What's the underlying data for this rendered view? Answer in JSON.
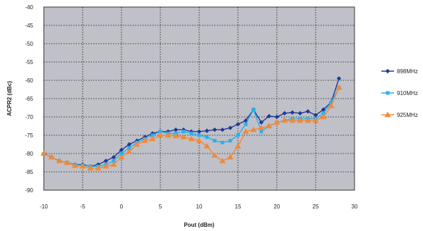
{
  "chart_data": {
    "type": "line",
    "title": "",
    "xlabel": "Pout (dBm)",
    "ylabel": "ACPR2 (dBc)",
    "xlim": [
      -10,
      30
    ],
    "ylim": [
      -90,
      -40
    ],
    "xticks": [
      -10,
      -5,
      0,
      5,
      10,
      15,
      20,
      25,
      30
    ],
    "yticks": [
      -90,
      -85,
      -80,
      -75,
      -70,
      -65,
      -60,
      -55,
      -50,
      -45,
      -40
    ],
    "grid": true,
    "plot_background": "#c0c0c8",
    "legend_position": "right",
    "x": [
      -10,
      -9,
      -8,
      -7,
      -6,
      -5,
      -4,
      -3,
      -2,
      -1,
      0,
      1,
      2,
      3,
      4,
      5,
      6,
      7,
      8,
      9,
      10,
      11,
      12,
      13,
      14,
      15,
      16,
      17,
      18,
      19,
      20,
      21,
      22,
      23,
      24,
      25,
      26,
      27,
      28
    ],
    "series": [
      {
        "name": "898MHz",
        "color": "#1f3a93",
        "marker": "diamond",
        "values": [
          -80,
          -81,
          -82,
          -82.5,
          -83,
          -83,
          -83.5,
          -83,
          -82,
          -81,
          -79,
          -77.5,
          -76.5,
          -75.5,
          -74.5,
          -74,
          -74,
          -73.5,
          -73.5,
          -74,
          -74,
          -73.8,
          -73.5,
          -73.5,
          -73,
          -72,
          -71,
          -68,
          -71.5,
          -69.8,
          -70,
          -69,
          -68.8,
          -69,
          -68.5,
          -69.5,
          -68,
          -66,
          -59.5
        ]
      },
      {
        "name": "910MHz",
        "color": "#2bb0e8",
        "marker": "square",
        "values": [
          -80,
          -81,
          -82,
          -82.5,
          -83,
          -83.2,
          -83.5,
          -83.5,
          -83,
          -82,
          -80,
          -78.5,
          -77,
          -76,
          -75,
          -74,
          -74.5,
          -74.5,
          -74,
          -74.5,
          -75,
          -75.5,
          -76.5,
          -77,
          -76.5,
          -75,
          -72,
          -68,
          -74,
          -72.5,
          -71.5,
          -71,
          -70.5,
          -70.5,
          -70.5,
          -70.5,
          -69,
          -66,
          -62
        ]
      },
      {
        "name": "925MHz",
        "color": "#f08a3a",
        "marker": "triangle",
        "values": [
          -80,
          -81,
          -82,
          -82.5,
          -83.3,
          -83.5,
          -84,
          -84,
          -83.5,
          -83,
          -81,
          -79.5,
          -77.5,
          -76.5,
          -76,
          -75,
          -75,
          -75.2,
          -75.5,
          -76,
          -76.5,
          -78,
          -80.5,
          -82,
          -81,
          -78,
          -74,
          -73.5,
          -73,
          -72.5,
          -71.5,
          -71,
          -71,
          -71,
          -71,
          -71,
          -70,
          -67,
          -62
        ]
      }
    ]
  }
}
